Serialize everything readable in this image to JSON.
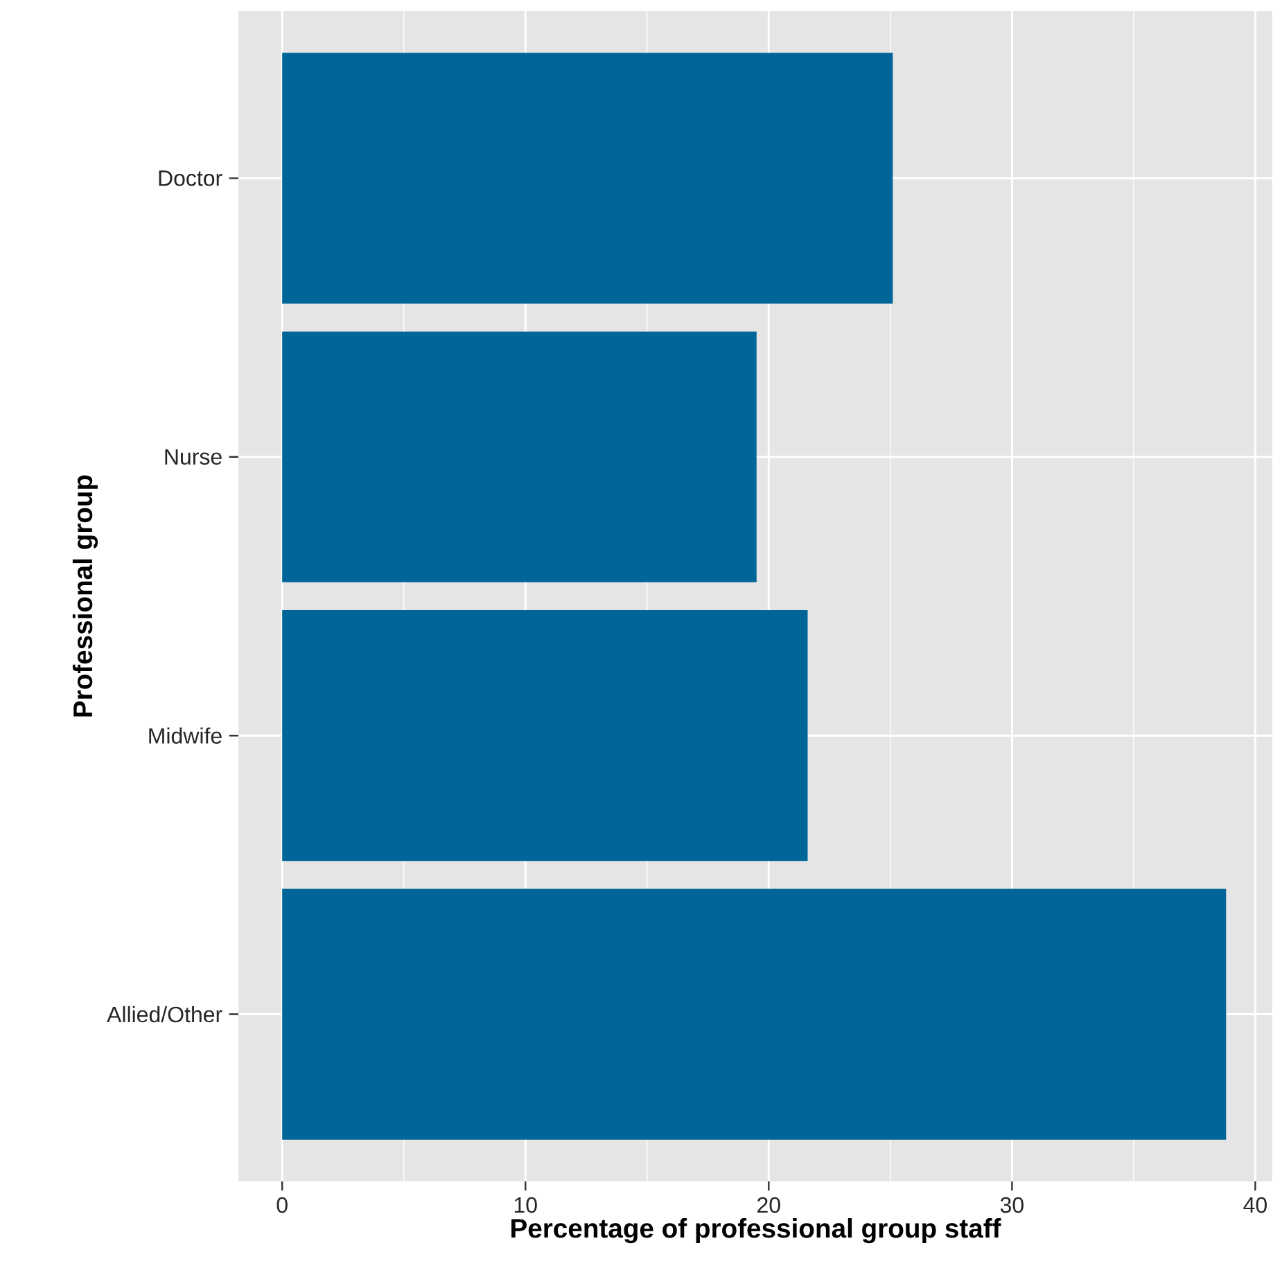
{
  "chart_data": {
    "type": "bar",
    "orientation": "horizontal",
    "xlabel": "Percentage of professional group staff",
    "ylabel": "Professional group",
    "categories": [
      "Doctor",
      "Nurse",
      "Midwife",
      "Allied/Other"
    ],
    "values": [
      25.1,
      19.5,
      21.6,
      38.8
    ],
    "color": "#006699",
    "xlim": [
      -1.8,
      40.7
    ],
    "xticks": [
      0,
      10,
      20,
      30,
      40
    ],
    "grid": true
  }
}
